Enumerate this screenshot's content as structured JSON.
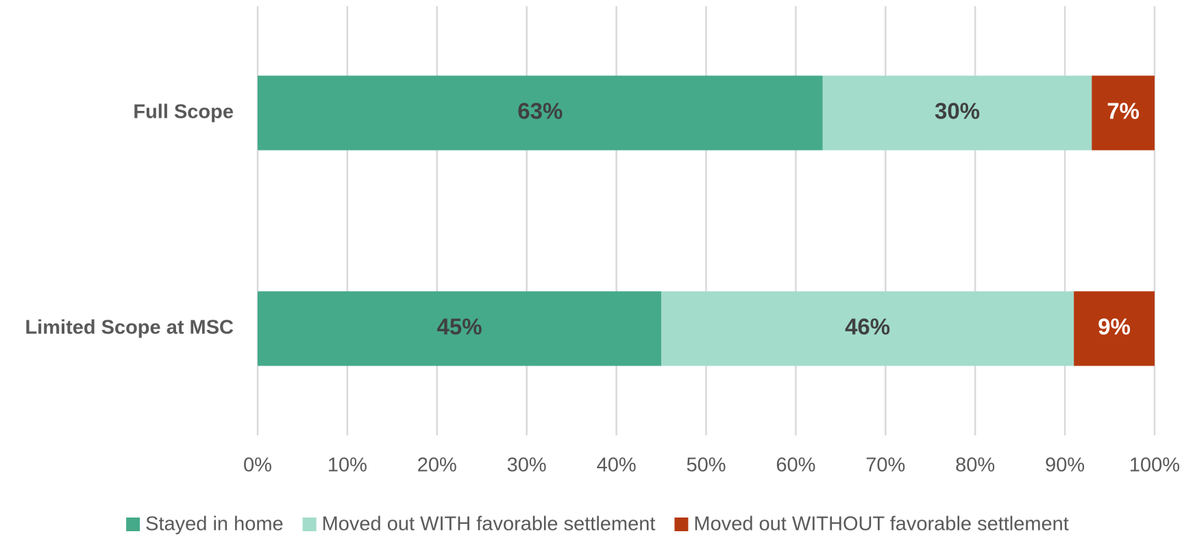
{
  "chart_data": {
    "type": "stacked_barh",
    "categories": [
      "Full Scope",
      "Limited Scope at MSC"
    ],
    "series": [
      {
        "name": "Stayed in home",
        "color": "#45aa8a",
        "values": [
          63,
          45
        ],
        "value_labels": [
          "63%",
          "45%"
        ],
        "label_color": "#404040"
      },
      {
        "name": "Moved out WITH favorable settlement",
        "color": "#a3dccb",
        "values": [
          30,
          46
        ],
        "value_labels": [
          "30%",
          "46%"
        ],
        "label_color": "#404040"
      },
      {
        "name": "Moved out WITHOUT favorable settlement",
        "color": "#b5390f",
        "values": [
          7,
          9
        ],
        "value_labels": [
          "7%",
          "9%"
        ],
        "label_color": "#ffffff"
      }
    ],
    "xlim": [
      0,
      100
    ],
    "xticks": [
      {
        "value": 0,
        "label": "0%"
      },
      {
        "value": 10,
        "label": "10%"
      },
      {
        "value": 20,
        "label": "20%"
      },
      {
        "value": 30,
        "label": "30%"
      },
      {
        "value": 40,
        "label": "40%"
      },
      {
        "value": 50,
        "label": "50%"
      },
      {
        "value": 60,
        "label": "60%"
      },
      {
        "value": 70,
        "label": "70%"
      },
      {
        "value": 80,
        "label": "80%"
      },
      {
        "value": 90,
        "label": "90%"
      },
      {
        "value": 100,
        "label": "100%"
      }
    ],
    "grid": true,
    "legend": "bottom"
  }
}
